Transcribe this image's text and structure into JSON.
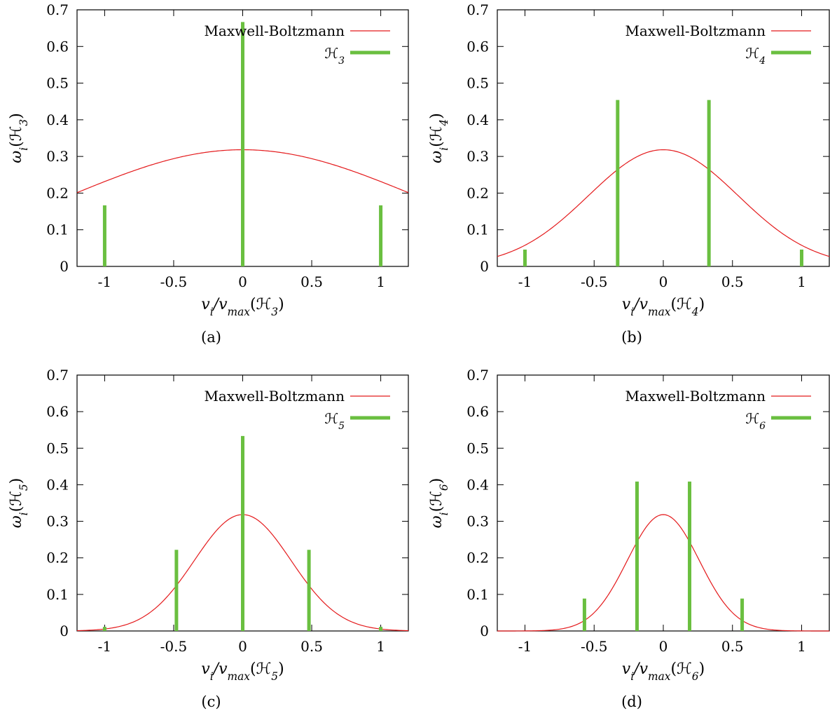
{
  "chart_data": [
    {
      "type": "bar",
      "caption": "(a)",
      "xlabel_parts": [
        "v",
        "i",
        "/v",
        "max",
        "(ℋ",
        "3",
        ")"
      ],
      "ylabel_parts": [
        "ω",
        "i",
        "(ℋ",
        "3",
        ")"
      ],
      "xlim": [
        -1.2,
        1.2
      ],
      "ylim": [
        0,
        0.7
      ],
      "xticks": [
        -1,
        -0.5,
        0,
        0.5,
        1
      ],
      "xtick_labels": [
        "-1",
        "-0.5",
        "0",
        "0.5",
        "1"
      ],
      "yticks": [
        0,
        0.1,
        0.2,
        0.3,
        0.4,
        0.5,
        0.6,
        0.7
      ],
      "ytick_labels": [
        "0",
        "0.1",
        "0.2",
        "0.3",
        "0.4",
        "0.5",
        "0.6",
        "0.7"
      ],
      "legend_position": "top-right",
      "series": [
        {
          "name": "Maxwell-Boltzmann",
          "kind": "line",
          "color": "#e41a1c",
          "sigma": 1.253
        },
        {
          "name_parts": [
            "ℋ",
            "3"
          ],
          "kind": "impulse",
          "color": "#6abf40",
          "x": [
            -1,
            0,
            1
          ],
          "y": [
            0.1667,
            0.6667,
            0.1667
          ]
        }
      ]
    },
    {
      "type": "bar",
      "caption": "(b)",
      "xlabel_parts": [
        "v",
        "i",
        "/v",
        "max",
        "(ℋ",
        "4",
        ")"
      ],
      "ylabel_parts": [
        "ω",
        "i",
        "(ℋ",
        "4",
        ")"
      ],
      "xlim": [
        -1.2,
        1.2
      ],
      "ylim": [
        0,
        0.7
      ],
      "xticks": [
        -1,
        -0.5,
        0,
        0.5,
        1
      ],
      "xtick_labels": [
        "-1",
        "-0.5",
        "0",
        "0.5",
        "1"
      ],
      "yticks": [
        0,
        0.1,
        0.2,
        0.3,
        0.4,
        0.5,
        0.6,
        0.7
      ],
      "ytick_labels": [
        "0",
        "0.1",
        "0.2",
        "0.3",
        "0.4",
        "0.5",
        "0.6",
        "0.7"
      ],
      "legend_position": "top-right",
      "series": [
        {
          "name": "Maxwell-Boltzmann",
          "kind": "line",
          "color": "#e41a1c",
          "sigma": 0.541
        },
        {
          "name_parts": [
            "ℋ",
            "4"
          ],
          "kind": "impulse",
          "color": "#6abf40",
          "x": [
            -1,
            -0.33,
            0.33,
            1
          ],
          "y": [
            0.0459,
            0.4541,
            0.4541,
            0.0459
          ]
        }
      ]
    },
    {
      "type": "bar",
      "caption": "(c)",
      "xlabel_parts": [
        "v",
        "i",
        "/v",
        "max",
        "(ℋ",
        "5",
        ")"
      ],
      "ylabel_parts": [
        "ω",
        "i",
        "(ℋ",
        "5",
        ")"
      ],
      "xlim": [
        -1.2,
        1.2
      ],
      "ylim": [
        0,
        0.7
      ],
      "xticks": [
        -1,
        -0.5,
        0,
        0.5,
        1
      ],
      "xtick_labels": [
        "-1",
        "-0.5",
        "0",
        "0.5",
        "1"
      ],
      "yticks": [
        0,
        0.1,
        0.2,
        0.3,
        0.4,
        0.5,
        0.6,
        0.7
      ],
      "ytick_labels": [
        "0",
        "0.1",
        "0.2",
        "0.3",
        "0.4",
        "0.5",
        "0.6",
        "0.7"
      ],
      "legend_position": "top-right",
      "series": [
        {
          "name": "Maxwell-Boltzmann",
          "kind": "line",
          "color": "#e41a1c",
          "sigma": 0.35
        },
        {
          "name_parts": [
            "ℋ",
            "5"
          ],
          "kind": "impulse",
          "color": "#6abf40",
          "x": [
            -1,
            -0.48,
            0,
            0.48,
            1
          ],
          "y": [
            0.0113,
            0.2221,
            0.5333,
            0.2221,
            0.0113
          ]
        }
      ]
    },
    {
      "type": "bar",
      "caption": "(d)",
      "xlabel_parts": [
        "v",
        "i",
        "/v",
        "max",
        "(ℋ",
        "6",
        ")"
      ],
      "ylabel_parts": [
        "ω",
        "i",
        "(ℋ",
        "6",
        ")"
      ],
      "xlim": [
        -1.2,
        1.2
      ],
      "ylim": [
        0,
        0.7
      ],
      "xticks": [
        -1,
        -0.5,
        0,
        0.5,
        1
      ],
      "xtick_labels": [
        "-1",
        "-0.5",
        "0",
        "0.5",
        "1"
      ],
      "yticks": [
        0,
        0.1,
        0.2,
        0.3,
        0.4,
        0.5,
        0.6,
        0.7
      ],
      "ytick_labels": [
        "0",
        "0.1",
        "0.2",
        "0.3",
        "0.4",
        "0.5",
        "0.6",
        "0.7"
      ],
      "legend_position": "top-right",
      "series": [
        {
          "name": "Maxwell-Boltzmann",
          "kind": "line",
          "color": "#e41a1c",
          "sigma": 0.26
        },
        {
          "name_parts": [
            "ℋ",
            "6"
          ],
          "kind": "impulse",
          "color": "#6abf40",
          "x": [
            -0.57,
            -0.19,
            0.19,
            0.57
          ],
          "y": [
            0.0887,
            0.4088,
            0.4088,
            0.0887
          ]
        }
      ]
    }
  ]
}
